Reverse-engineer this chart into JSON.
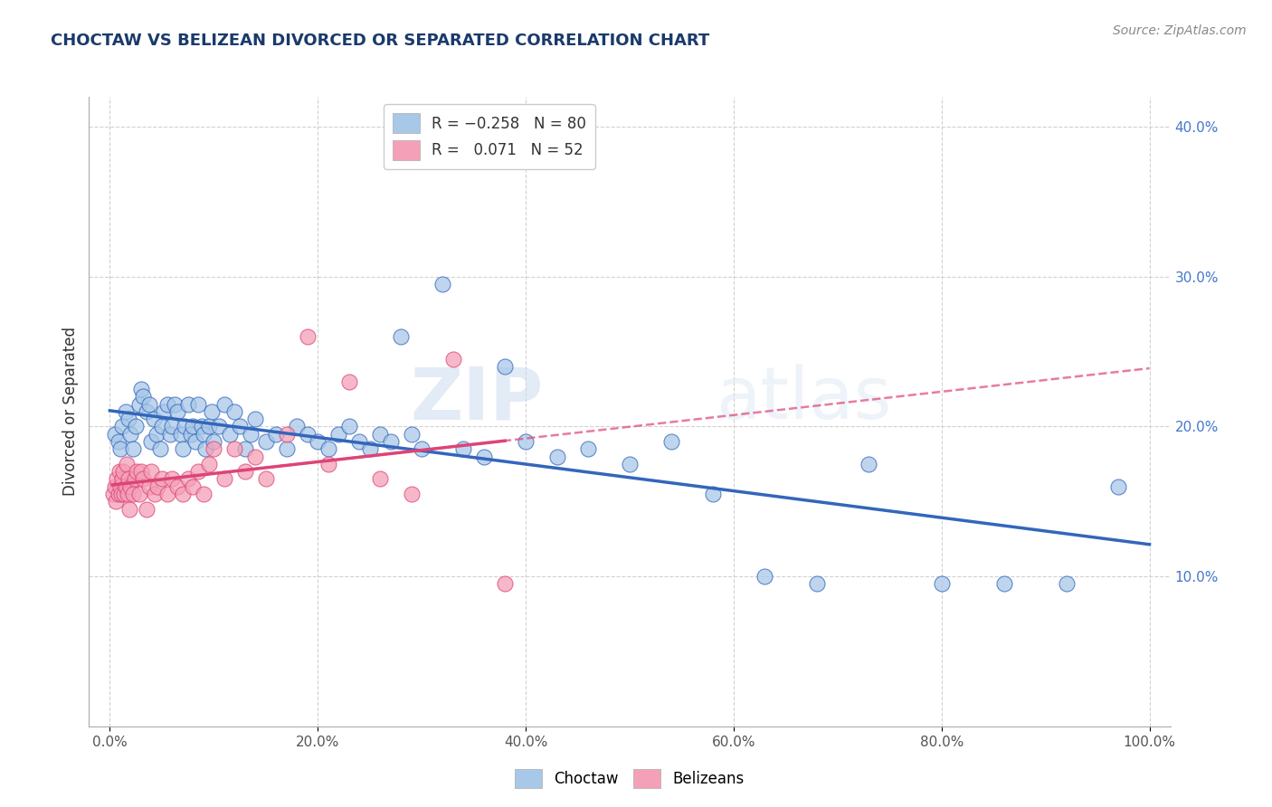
{
  "title": "CHOCTAW VS BELIZEAN DIVORCED OR SEPARATED CORRELATION CHART",
  "source_text": "Source: ZipAtlas.com",
  "ylabel": "Divorced or Separated",
  "xlim": [
    -0.02,
    1.02
  ],
  "ylim": [
    0.0,
    0.42
  ],
  "xticks": [
    0.0,
    0.2,
    0.4,
    0.6,
    0.8,
    1.0
  ],
  "xticklabels": [
    "0.0%",
    "20.0%",
    "40.0%",
    "60.0%",
    "80.0%",
    "100.0%"
  ],
  "yticks_left": [],
  "yticks_right": [
    0.1,
    0.2,
    0.3,
    0.4
  ],
  "yticklabels_right": [
    "10.0%",
    "20.0%",
    "30.0%",
    "40.0%"
  ],
  "legend_label1": "Choctaw",
  "legend_label2": "Belizeans",
  "color1": "#a8c8e8",
  "color2": "#f4a0b8",
  "line_color1": "#3366bb",
  "line_color2": "#dd4477",
  "background_color": "#ffffff",
  "grid_color": "#cccccc",
  "watermark_zip": "ZIP",
  "watermark_atlas": "atlas",
  "title_color": "#1a3a6b",
  "choctaw_x": [
    0.005,
    0.008,
    0.01,
    0.012,
    0.015,
    0.018,
    0.02,
    0.022,
    0.025,
    0.028,
    0.03,
    0.032,
    0.035,
    0.038,
    0.04,
    0.042,
    0.045,
    0.048,
    0.05,
    0.052,
    0.055,
    0.058,
    0.06,
    0.062,
    0.065,
    0.068,
    0.07,
    0.072,
    0.075,
    0.078,
    0.08,
    0.082,
    0.085,
    0.088,
    0.09,
    0.092,
    0.095,
    0.098,
    0.1,
    0.105,
    0.11,
    0.115,
    0.12,
    0.125,
    0.13,
    0.135,
    0.14,
    0.15,
    0.16,
    0.17,
    0.18,
    0.19,
    0.2,
    0.21,
    0.22,
    0.23,
    0.24,
    0.25,
    0.26,
    0.27,
    0.28,
    0.29,
    0.3,
    0.32,
    0.34,
    0.36,
    0.38,
    0.4,
    0.43,
    0.46,
    0.5,
    0.54,
    0.58,
    0.63,
    0.68,
    0.73,
    0.8,
    0.86,
    0.92,
    0.97
  ],
  "choctaw_y": [
    0.195,
    0.19,
    0.185,
    0.2,
    0.21,
    0.205,
    0.195,
    0.185,
    0.2,
    0.215,
    0.225,
    0.22,
    0.21,
    0.215,
    0.19,
    0.205,
    0.195,
    0.185,
    0.2,
    0.21,
    0.215,
    0.195,
    0.2,
    0.215,
    0.21,
    0.195,
    0.185,
    0.2,
    0.215,
    0.195,
    0.2,
    0.19,
    0.215,
    0.2,
    0.195,
    0.185,
    0.2,
    0.21,
    0.19,
    0.2,
    0.215,
    0.195,
    0.21,
    0.2,
    0.185,
    0.195,
    0.205,
    0.19,
    0.195,
    0.185,
    0.2,
    0.195,
    0.19,
    0.185,
    0.195,
    0.2,
    0.19,
    0.185,
    0.195,
    0.19,
    0.26,
    0.195,
    0.185,
    0.295,
    0.185,
    0.18,
    0.24,
    0.19,
    0.18,
    0.185,
    0.175,
    0.19,
    0.155,
    0.1,
    0.095,
    0.175,
    0.095,
    0.095,
    0.095,
    0.16
  ],
  "belizean_x": [
    0.003,
    0.005,
    0.006,
    0.007,
    0.008,
    0.009,
    0.01,
    0.011,
    0.012,
    0.013,
    0.014,
    0.015,
    0.016,
    0.017,
    0.018,
    0.019,
    0.02,
    0.022,
    0.024,
    0.026,
    0.028,
    0.03,
    0.032,
    0.035,
    0.038,
    0.04,
    0.043,
    0.046,
    0.05,
    0.055,
    0.06,
    0.065,
    0.07,
    0.075,
    0.08,
    0.085,
    0.09,
    0.095,
    0.1,
    0.11,
    0.12,
    0.13,
    0.14,
    0.15,
    0.17,
    0.19,
    0.21,
    0.23,
    0.26,
    0.29,
    0.33,
    0.38
  ],
  "belizean_y": [
    0.155,
    0.16,
    0.15,
    0.165,
    0.155,
    0.17,
    0.16,
    0.155,
    0.165,
    0.17,
    0.155,
    0.16,
    0.175,
    0.155,
    0.165,
    0.145,
    0.16,
    0.155,
    0.165,
    0.17,
    0.155,
    0.17,
    0.165,
    0.145,
    0.16,
    0.17,
    0.155,
    0.16,
    0.165,
    0.155,
    0.165,
    0.16,
    0.155,
    0.165,
    0.16,
    0.17,
    0.155,
    0.175,
    0.185,
    0.165,
    0.185,
    0.17,
    0.18,
    0.165,
    0.195,
    0.26,
    0.175,
    0.23,
    0.165,
    0.155,
    0.245,
    0.095
  ]
}
